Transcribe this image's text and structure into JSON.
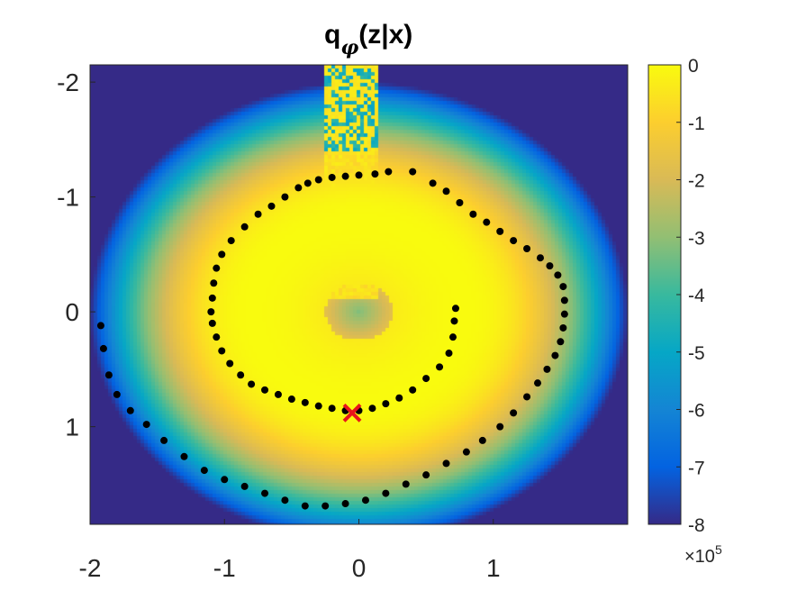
{
  "chart_data": {
    "type": "heatmap",
    "title_main": "q",
    "title_sub": "φ",
    "title_rest": "(z|x)",
    "xlim": [
      -2.0,
      2.0
    ],
    "ylim": [
      -2.15,
      1.85
    ],
    "y_reversed": true,
    "x_ticks": [
      {
        "value": -2,
        "label": "-2"
      },
      {
        "value": -1,
        "label": "-1"
      },
      {
        "value": 0,
        "label": "0"
      },
      {
        "value": 1,
        "label": "1"
      }
    ],
    "y_ticks": [
      {
        "value": -2,
        "label": "-2"
      },
      {
        "value": -1,
        "label": "-1"
      },
      {
        "value": 0,
        "label": "0"
      },
      {
        "value": 1,
        "label": "1"
      }
    ],
    "colorbar": {
      "min": -8,
      "max": 0,
      "ticks": [
        {
          "value": 0,
          "label": "0"
        },
        {
          "value": -1,
          "label": "-1"
        },
        {
          "value": -2,
          "label": "-2"
        },
        {
          "value": -3,
          "label": "-3"
        },
        {
          "value": -4,
          "label": "-4"
        },
        {
          "value": -5,
          "label": "-5"
        },
        {
          "value": -6,
          "label": "-6"
        },
        {
          "value": -7,
          "label": "-7"
        },
        {
          "value": -8,
          "label": "-8"
        }
      ],
      "exponent_prefix": "×10",
      "exponent_power": "5",
      "colormap": "parula"
    },
    "field": {
      "description_values": "log density, peak ring near radius 0.8, decays outward",
      "ring_radius": 0.8,
      "saturation_radius": 2.0,
      "min_value": -8,
      "max_value": 0
    },
    "points_color": "#000000",
    "marker": {
      "x": -0.05,
      "y": 0.88,
      "symbol": "x",
      "color": "#e8151b"
    },
    "spiral": {
      "inner_arm": [
        [
          -0.45,
          -1.08
        ],
        [
          -0.38,
          -1.12
        ],
        [
          -0.3,
          -1.15
        ],
        [
          -0.2,
          -1.17
        ],
        [
          -0.1,
          -1.18
        ],
        [
          0.0,
          -1.19
        ],
        [
          0.12,
          -1.2
        ],
        [
          0.22,
          -1.22
        ],
        [
          0.4,
          -1.22
        ],
        [
          -0.55,
          -1.0
        ],
        [
          -0.65,
          -0.92
        ],
        [
          -0.75,
          -0.85
        ],
        [
          -0.85,
          -0.74
        ],
        [
          -0.95,
          -0.62
        ],
        [
          -1.02,
          -0.5
        ],
        [
          -1.06,
          -0.38
        ],
        [
          -1.08,
          -0.25
        ],
        [
          -1.09,
          -0.12
        ],
        [
          -1.1,
          0.0
        ],
        [
          -1.09,
          0.1
        ],
        [
          -1.06,
          0.22
        ],
        [
          -1.02,
          0.34
        ],
        [
          -0.96,
          0.45
        ],
        [
          -0.88,
          0.55
        ],
        [
          -0.8,
          0.63
        ],
        [
          -0.7,
          0.68
        ],
        [
          -0.6,
          0.72
        ],
        [
          -0.5,
          0.76
        ],
        [
          -0.4,
          0.79
        ],
        [
          -0.3,
          0.82
        ],
        [
          -0.2,
          0.84
        ],
        [
          -0.1,
          0.86
        ],
        [
          0.0,
          0.86
        ],
        [
          0.1,
          0.84
        ],
        [
          0.2,
          0.8
        ],
        [
          0.3,
          0.75
        ],
        [
          0.4,
          0.68
        ],
        [
          0.5,
          0.58
        ],
        [
          0.6,
          0.48
        ],
        [
          0.67,
          0.36
        ],
        [
          0.7,
          0.22
        ],
        [
          0.71,
          0.08
        ],
        [
          0.72,
          -0.03
        ]
      ],
      "outer_arm": [
        [
          0.55,
          -1.12
        ],
        [
          0.65,
          -1.05
        ],
        [
          0.75,
          -0.95
        ],
        [
          0.85,
          -0.85
        ],
        [
          0.95,
          -0.78
        ],
        [
          1.05,
          -0.7
        ],
        [
          1.15,
          -0.62
        ],
        [
          1.25,
          -0.55
        ],
        [
          1.35,
          -0.47
        ],
        [
          1.42,
          -0.4
        ],
        [
          1.48,
          -0.32
        ],
        [
          1.52,
          -0.22
        ],
        [
          1.53,
          -0.1
        ],
        [
          1.53,
          0.02
        ],
        [
          1.52,
          0.14
        ],
        [
          1.5,
          0.26
        ],
        [
          1.46,
          0.38
        ],
        [
          1.4,
          0.5
        ],
        [
          1.33,
          0.62
        ],
        [
          1.25,
          0.74
        ],
        [
          1.15,
          0.88
        ],
        [
          1.05,
          1.0
        ],
        [
          0.92,
          1.12
        ],
        [
          0.8,
          1.22
        ],
        [
          0.65,
          1.32
        ],
        [
          0.5,
          1.42
        ],
        [
          0.35,
          1.5
        ],
        [
          0.2,
          1.58
        ],
        [
          0.05,
          1.64
        ],
        [
          -0.1,
          1.67
        ],
        [
          -0.25,
          1.69
        ],
        [
          -0.4,
          1.69
        ],
        [
          -0.55,
          1.64
        ],
        [
          -0.7,
          1.58
        ],
        [
          -0.85,
          1.52
        ],
        [
          -1.0,
          1.46
        ],
        [
          -1.15,
          1.38
        ],
        [
          -1.3,
          1.26
        ],
        [
          -1.45,
          1.12
        ],
        [
          -1.58,
          0.98
        ],
        [
          -1.7,
          0.86
        ],
        [
          -1.8,
          0.72
        ],
        [
          -1.86,
          0.55
        ],
        [
          -1.9,
          0.32
        ],
        [
          -1.92,
          0.12
        ]
      ]
    }
  }
}
